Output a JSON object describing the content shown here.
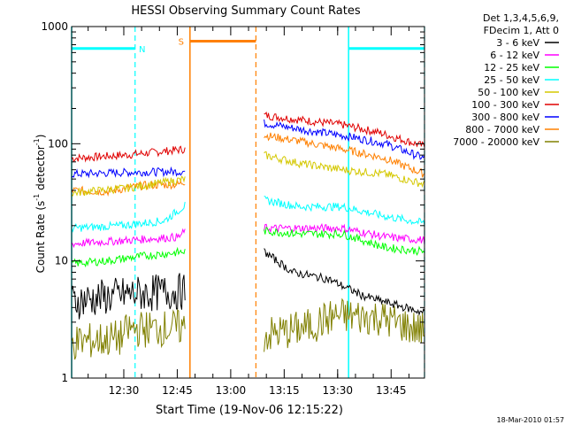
{
  "chart_data": {
    "type": "line",
    "title": "HESSI Observing Summary Count Rates",
    "xlabel": "Start Time (19-Nov-06 12:15:22)",
    "ylabel_parts": [
      "Count Rate (s",
      "-1",
      " detector",
      "-1",
      ")"
    ],
    "yscale": "log",
    "ylim": [
      1,
      1000
    ],
    "xlim_minutes": [
      0,
      99
    ],
    "y_ticks": [
      {
        "v": 1,
        "label": "1"
      },
      {
        "v": 10,
        "label": "10"
      },
      {
        "v": 100,
        "label": "100"
      },
      {
        "v": 1000,
        "label": "1000"
      }
    ],
    "x_ticks": [
      "12:30",
      "12:45",
      "13:00",
      "13:15",
      "13:30",
      "13:45"
    ],
    "timestamp": "18-Mar-2010 01:57",
    "legend": {
      "header": [
        "Det 1,3,4,5,6,9,",
        "FDecim 1, Att 0"
      ],
      "entries": [
        {
          "label": "3 - 6 keV",
          "color": "#000000"
        },
        {
          "label": "6 - 12 keV",
          "color": "#ff00ff"
        },
        {
          "label": "12 - 25 keV",
          "color": "#00ff00"
        },
        {
          "label": "25 - 50 keV",
          "color": "#00ffff"
        },
        {
          "label": "50 - 100 keV",
          "color": "#d4c800"
        },
        {
          "label": "100 - 300 keV",
          "color": "#e00000"
        },
        {
          "label": "300 - 800 keV",
          "color": "#0000ff"
        },
        {
          "label": "800 - 7000 keV",
          "color": "#ff8000"
        },
        {
          "label": "7000 - 20000 keV",
          "color": "#808000"
        }
      ]
    },
    "series": [
      {
        "color": "#e00000",
        "segments": [
          [
            [
              0,
              75
            ],
            [
              15,
              80
            ],
            [
              24,
              85
            ],
            [
              32,
              90
            ]
          ],
          [
            [
              54,
              175
            ],
            [
              64,
              160
            ],
            [
              76,
              145
            ],
            [
              86,
              125
            ],
            [
              99,
              95
            ]
          ]
        ]
      },
      {
        "color": "#0000ff",
        "segments": [
          [
            [
              0,
              55
            ],
            [
              16,
              57
            ],
            [
              32,
              58
            ]
          ],
          [
            [
              54,
              150
            ],
            [
              66,
              130
            ],
            [
              78,
              115
            ],
            [
              88,
              100
            ],
            [
              99,
              75
            ]
          ]
        ]
      },
      {
        "color": "#ff8000",
        "segments": [
          [
            [
              0,
              40
            ],
            [
              10,
              39
            ],
            [
              20,
              44
            ],
            [
              30,
              45
            ],
            [
              32,
              48
            ]
          ],
          [
            [
              54,
              118
            ],
            [
              64,
              105
            ],
            [
              76,
              90
            ],
            [
              88,
              75
            ],
            [
              99,
              55
            ]
          ]
        ]
      },
      {
        "color": "#d4c800",
        "segments": [
          [
            [
              0,
              38
            ],
            [
              16,
              42
            ],
            [
              32,
              50
            ]
          ],
          [
            [
              54,
              80
            ],
            [
              64,
              68
            ],
            [
              76,
              60
            ],
            [
              88,
              55
            ],
            [
              99,
              45
            ]
          ]
        ]
      },
      {
        "color": "#00ffff",
        "segments": [
          [
            [
              0,
              19
            ],
            [
              14,
              20
            ],
            [
              26,
              22
            ],
            [
              32,
              30
            ]
          ],
          [
            [
              54,
              33
            ],
            [
              64,
              29
            ],
            [
              76,
              29
            ],
            [
              88,
              24
            ],
            [
              99,
              21
            ]
          ]
        ]
      },
      {
        "color": "#ff00ff",
        "segments": [
          [
            [
              0,
              14
            ],
            [
              16,
              15
            ],
            [
              30,
              16
            ],
            [
              32,
              18
            ]
          ],
          [
            [
              54,
              19
            ],
            [
              66,
              19
            ],
            [
              76,
              19
            ],
            [
              88,
              16
            ],
            [
              99,
              15
            ]
          ]
        ]
      },
      {
        "color": "#00ff00",
        "segments": [
          [
            [
              0,
              9.5
            ],
            [
              10,
              10
            ],
            [
              20,
              11
            ],
            [
              32,
              12
            ]
          ],
          [
            [
              54,
              18
            ],
            [
              64,
              17
            ],
            [
              76,
              17
            ],
            [
              88,
              13
            ],
            [
              99,
              12
            ]
          ]
        ]
      },
      {
        "color": "#000000",
        "segments": [
          [
            [
              0,
              4.5
            ],
            [
              16,
              5.2
            ],
            [
              32,
              5.5
            ]
          ],
          [
            [
              54,
              12
            ],
            [
              62,
              8
            ],
            [
              72,
              7
            ],
            [
              82,
              5
            ],
            [
              99,
              3.6
            ]
          ]
        ]
      },
      {
        "color": "#808000",
        "segments": [
          [
            [
              0,
              2
            ],
            [
              14,
              2.2
            ],
            [
              16,
              2.6
            ],
            [
              32,
              2.7
            ]
          ],
          [
            [
              54,
              2.3
            ],
            [
              66,
              2.7
            ],
            [
              74,
              3.4
            ],
            [
              86,
              3.3
            ],
            [
              99,
              2.5
            ]
          ]
        ]
      }
    ],
    "regions": [
      {
        "label": "N",
        "color": "#00ffff",
        "level": 650,
        "start": 0,
        "end": 17.8
      },
      {
        "label": "S",
        "color": "#ff8000",
        "level": 750,
        "start": 33.2,
        "end": 51.7
      },
      {
        "label": "",
        "color": "#00ffff",
        "level": 650,
        "start": 77.7,
        "end": 99
      }
    ]
  }
}
